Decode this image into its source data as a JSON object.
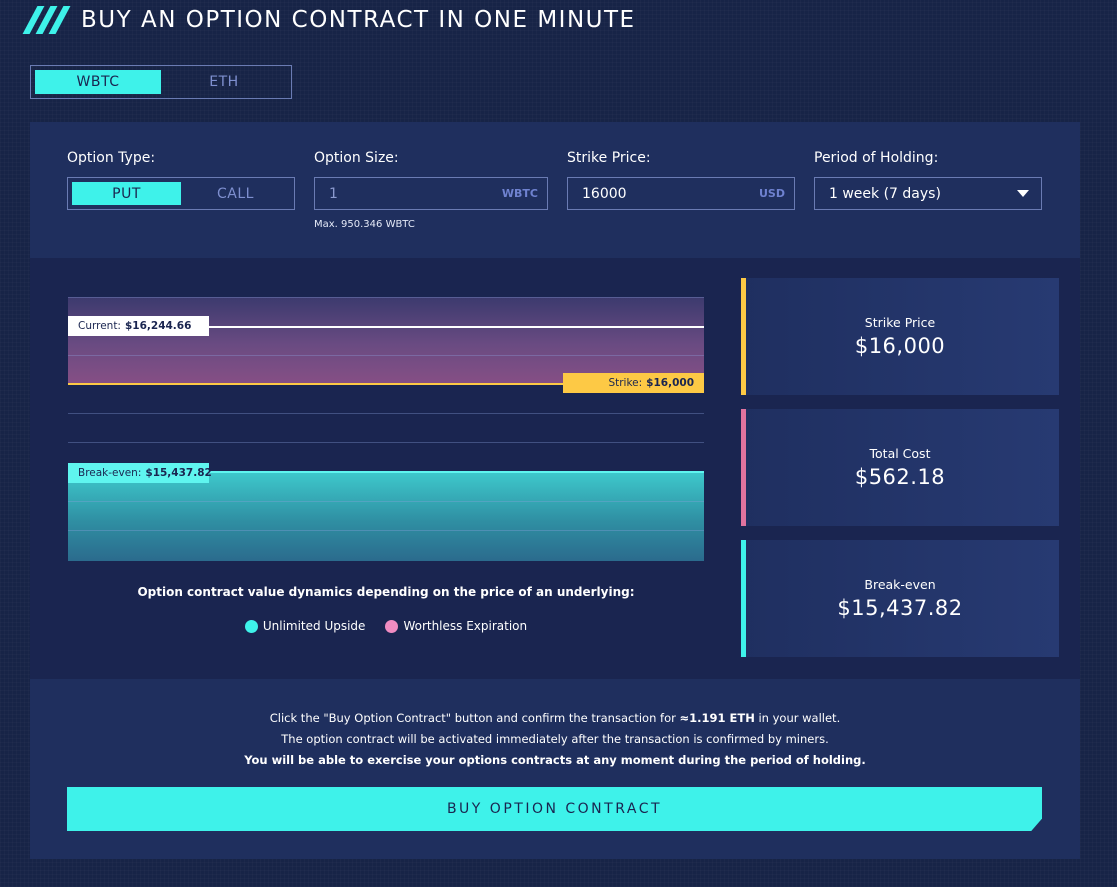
{
  "header": {
    "title": "BUY AN OPTION CONTRACT IN ONE MINUTE"
  },
  "asset_tabs": [
    {
      "label": "WBTC",
      "active": true
    },
    {
      "label": "ETH",
      "active": false
    }
  ],
  "form": {
    "option_type": {
      "label": "Option Type:",
      "options": [
        "PUT",
        "CALL"
      ],
      "selected": "PUT"
    },
    "option_size": {
      "label": "Option Size:",
      "value": "1",
      "unit": "WBTC",
      "hint": "Max. 950.346 WBTC"
    },
    "strike_price": {
      "label": "Strike Price:",
      "value": "16000",
      "unit": "USD"
    },
    "period": {
      "label": "Period of Holding:",
      "value": "1 week (7 days)"
    }
  },
  "chart": {
    "current_label": "Current:",
    "current_value": "$16,244.66",
    "strike_label": "Strike:",
    "strike_value": "$16,000",
    "breakeven_label": "Break-even:",
    "breakeven_value": "$15,437.82",
    "caption": "Option contract value dynamics depending on the price of an underlying:",
    "legend": [
      {
        "name": "Unlimited Upside",
        "color": "#3ef2ea"
      },
      {
        "name": "Worthless Expiration",
        "color": "#f08cc2"
      }
    ]
  },
  "cards": [
    {
      "label": "Strike Price",
      "value": "$16,000",
      "color": "#fdc945"
    },
    {
      "label": "Total Cost",
      "value": "$562.18",
      "color": "#e0739f"
    },
    {
      "label": "Break-even",
      "value": "$15,437.82",
      "color": "#3ef2ea"
    }
  ],
  "info": {
    "line1_pre": "Click the \"Buy Option Contract\" button and confirm the transaction for ",
    "line1_amount": "≈1.191 ETH",
    "line1_post": " in your wallet.",
    "line2": "The option contract will be activated immediately after the transaction is confirmed by miners.",
    "line3": "You will be able to exercise your options contracts at any moment during the period of holding."
  },
  "buy_button": "BUY OPTION CONTRACT"
}
